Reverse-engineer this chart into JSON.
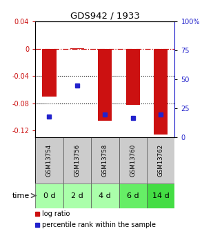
{
  "title": "GDS942 / 1933",
  "samples": [
    "GSM13754",
    "GSM13756",
    "GSM13758",
    "GSM13760",
    "GSM13762"
  ],
  "time_labels": [
    "0 d",
    "2 d",
    "4 d",
    "6 d",
    "14 d"
  ],
  "log_ratios": [
    -0.07,
    0.001,
    -0.105,
    -0.082,
    -0.126
  ],
  "percentile_ranks": [
    18,
    45,
    20,
    17,
    20
  ],
  "ylim_left": [
    -0.13,
    0.04
  ],
  "ylim_right": [
    0,
    100
  ],
  "yticks_left": [
    0.04,
    0,
    -0.04,
    -0.08,
    -0.12
  ],
  "yticks_right": [
    100,
    75,
    50,
    25,
    0
  ],
  "bar_color": "#cc1111",
  "dot_color": "#2222cc",
  "background_color": "#ffffff",
  "grid_color": "#000000",
  "label_log_ratio": "log ratio",
  "label_percentile": "percentile rank within the sample",
  "time_cell_colors": [
    "#aaffaa",
    "#aaffaa",
    "#aaffaa",
    "#66ee66",
    "#44dd44"
  ],
  "sample_row_color": "#cccccc",
  "bar_width": 0.5
}
